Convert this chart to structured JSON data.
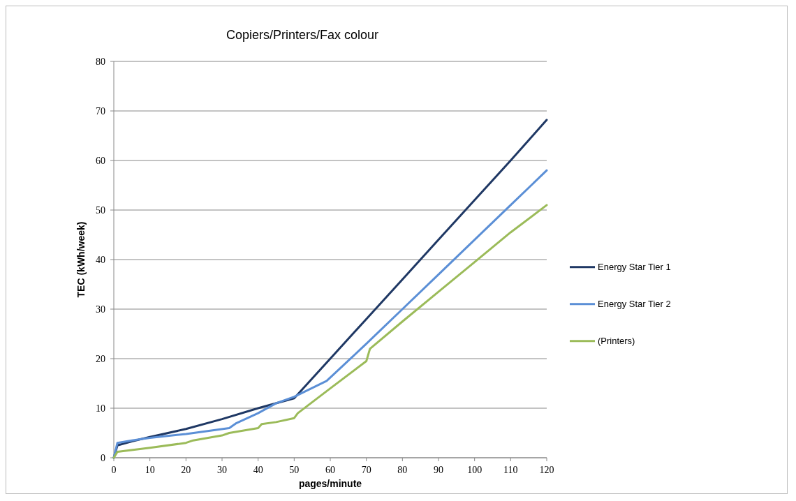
{
  "chart_data": {
    "type": "line",
    "title": "Copiers/Printers/Fax colour",
    "xlabel": "pages/minute",
    "ylabel": "TEC (kWh/week)",
    "xlim": [
      0,
      120
    ],
    "xticks": [
      0,
      10,
      20,
      30,
      40,
      50,
      60,
      70,
      80,
      90,
      100,
      110,
      120
    ],
    "ylim": [
      0,
      80
    ],
    "yticks": [
      0,
      10,
      20,
      30,
      40,
      50,
      60,
      70,
      80
    ],
    "grid": "y",
    "legend": "right",
    "marker": "none",
    "line_style": "solid",
    "series": [
      {
        "name": "Energy Star Tier 1",
        "color": "#1f3864",
        "x": [
          0,
          1,
          5,
          10,
          20,
          30,
          40,
          50,
          60,
          70,
          80,
          90,
          100,
          110,
          120
        ],
        "values": [
          0,
          2.5,
          3.3,
          4.2,
          5.8,
          7.8,
          10,
          12,
          20,
          28,
          36,
          44,
          52,
          60,
          68.2
        ]
      },
      {
        "name": "Energy Star Tier 2",
        "color": "#5b8fd6",
        "x": [
          0,
          1,
          5,
          10,
          20,
          32,
          34,
          40,
          45,
          50,
          59,
          70,
          80,
          90,
          100,
          110,
          120
        ],
        "values": [
          0,
          3,
          3.5,
          4,
          4.8,
          6,
          7,
          9,
          11,
          12.3,
          15.5,
          23,
          30,
          37,
          44,
          51,
          58
        ]
      },
      {
        "name": "(Printers)",
        "color": "#9bbb59",
        "x": [
          0,
          1,
          10,
          20,
          22,
          30,
          32,
          40,
          41,
          45,
          50,
          51,
          60,
          70,
          71,
          80,
          90,
          100,
          110,
          120
        ],
        "values": [
          0,
          1.2,
          2,
          3,
          3.5,
          4.5,
          5,
          6,
          6.8,
          7.2,
          8,
          9,
          14,
          19.5,
          22,
          27.5,
          33.5,
          39.5,
          45.5,
          51
        ]
      }
    ]
  }
}
